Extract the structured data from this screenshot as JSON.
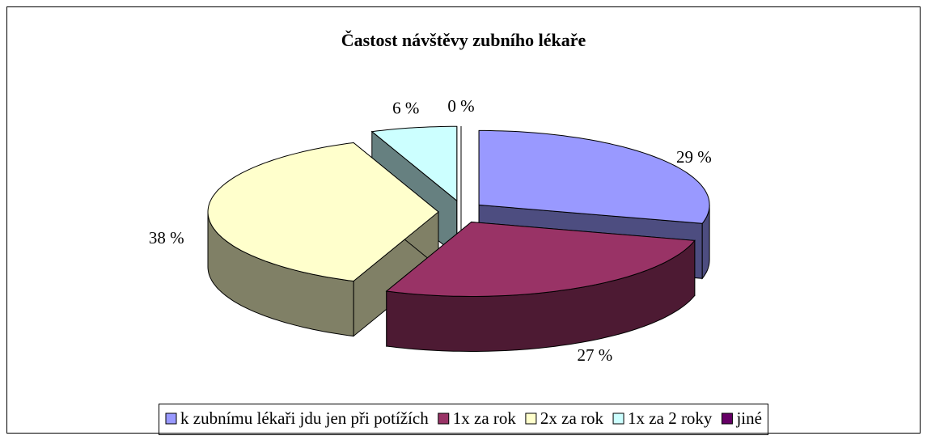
{
  "chart_data": {
    "type": "pie",
    "title": "Častost návštěvy zubního lékaře",
    "categories": [
      "k zubnímu lékaři jdu jen při potížích",
      "1x za rok",
      "2x za rok",
      "1x za 2 roky",
      "jiné"
    ],
    "values": [
      29,
      27,
      38,
      6,
      0
    ],
    "value_labels": [
      "29 %",
      "27 %",
      "38 %",
      "6 %",
      "0 %"
    ],
    "colors": [
      "#9999ff",
      "#993366",
      "#ffffcc",
      "#ccffff",
      "#660066"
    ],
    "legend": "bottom"
  }
}
